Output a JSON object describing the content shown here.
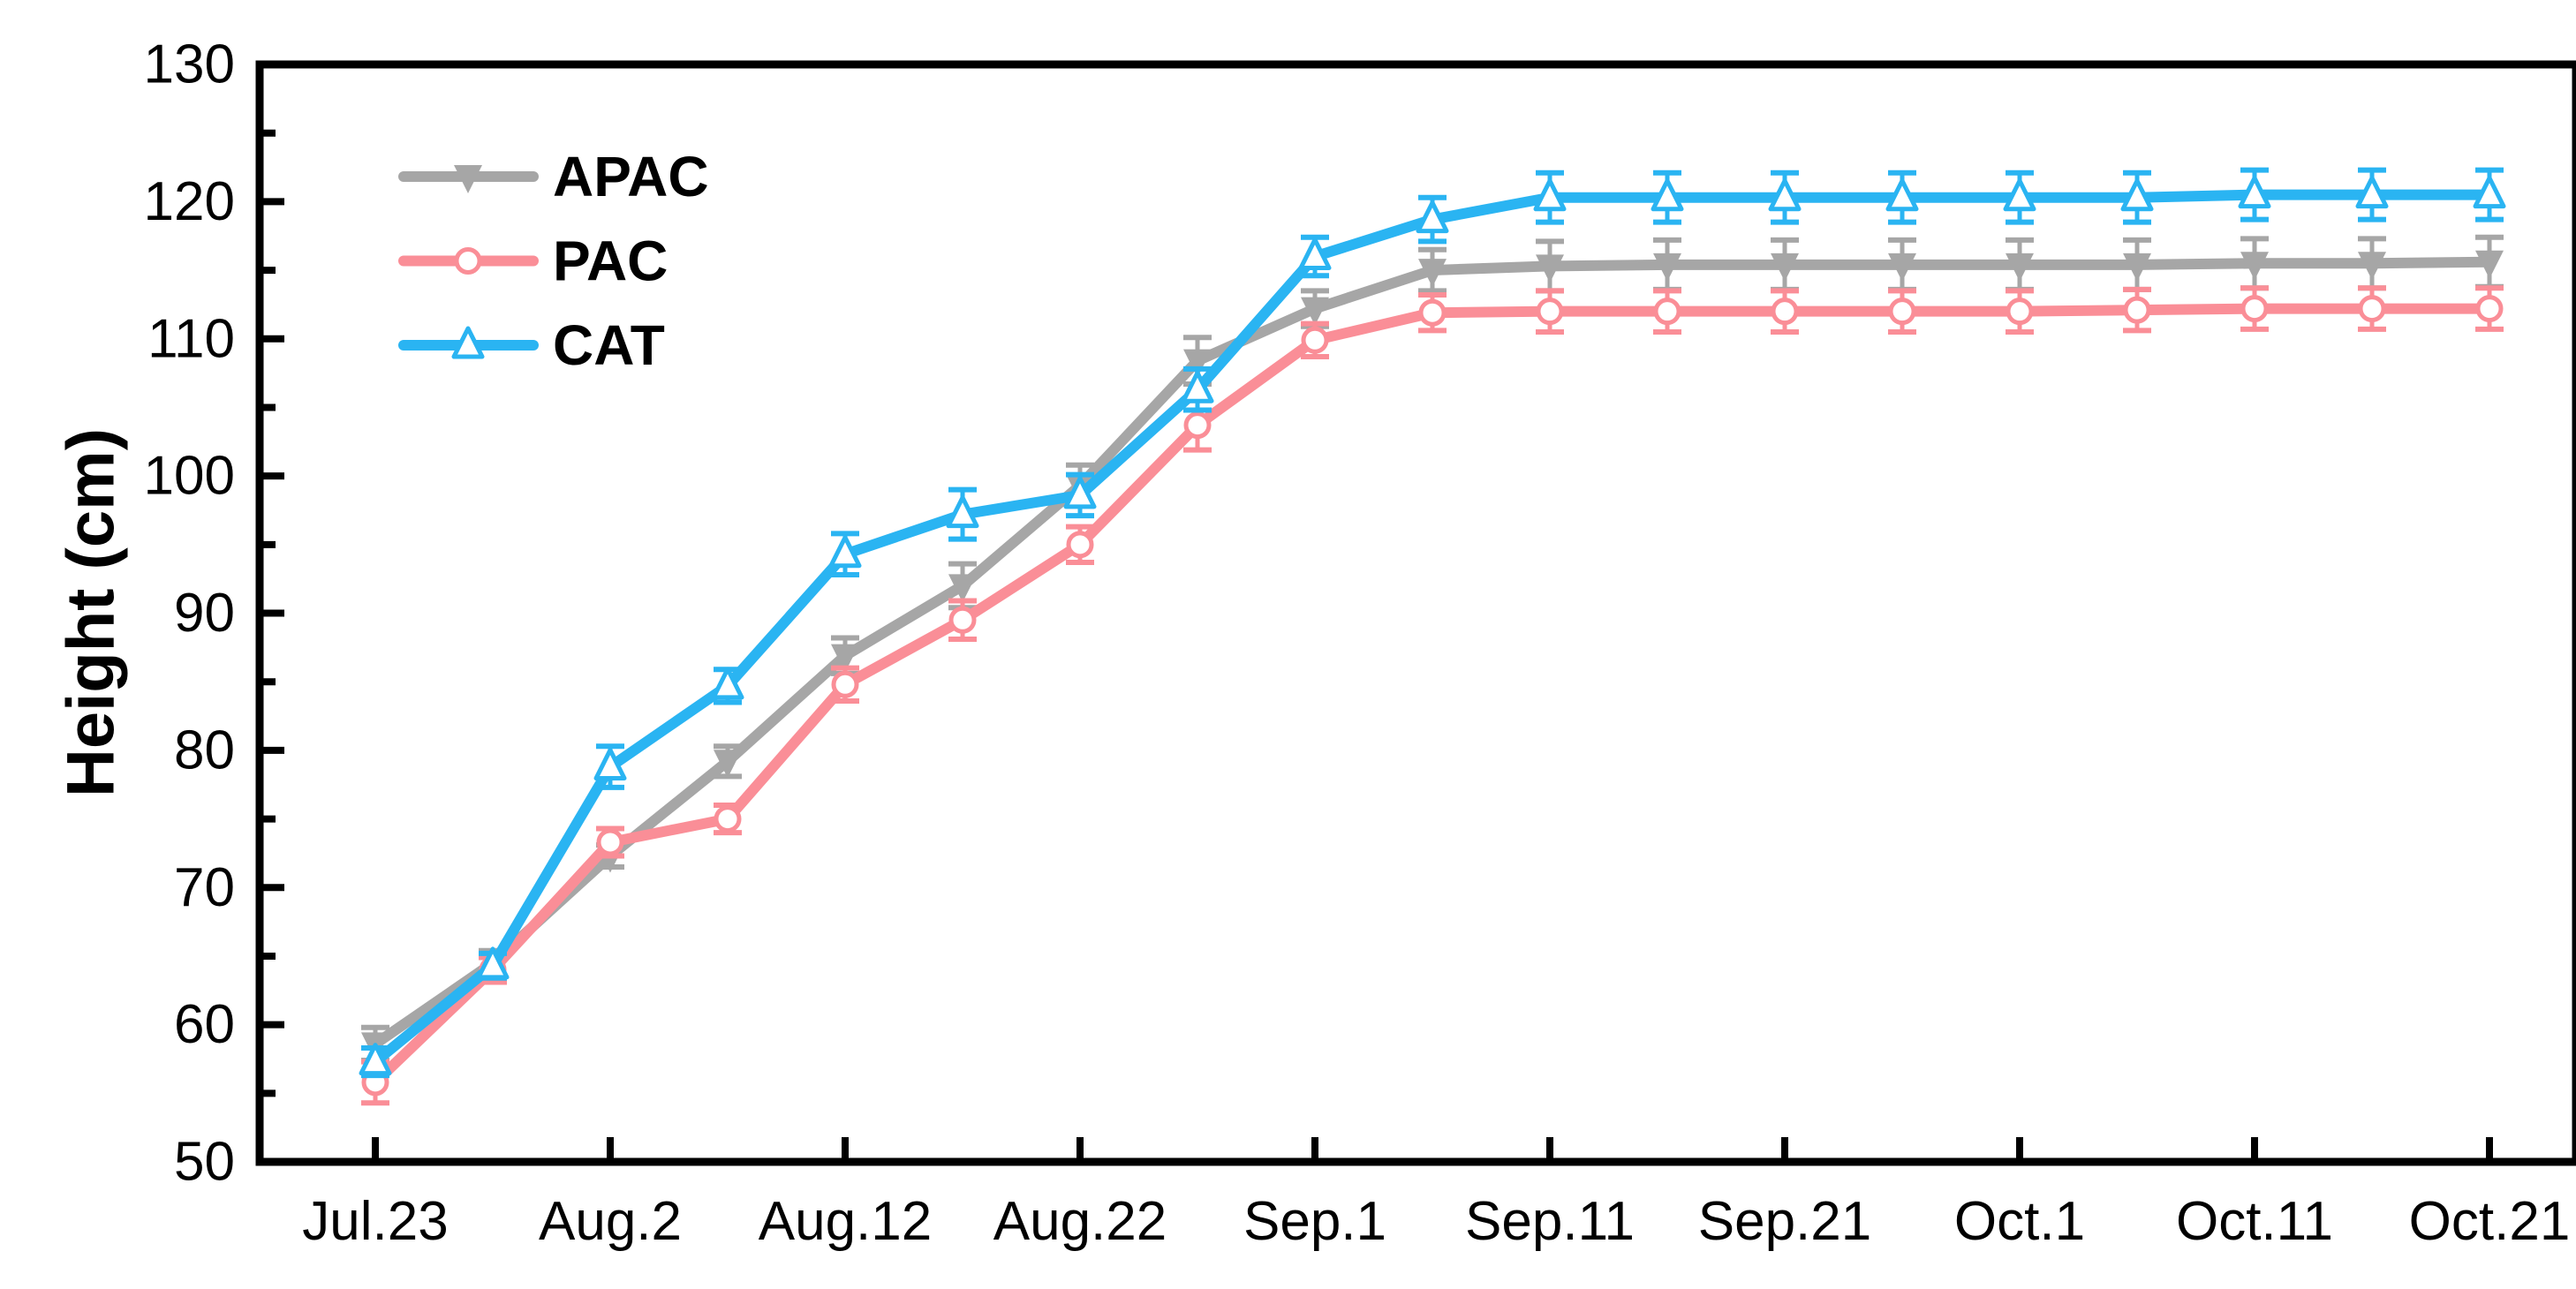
{
  "page": {
    "background": "#ffffff"
  },
  "chart_data": {
    "type": "line",
    "title": "",
    "xlabel": "",
    "ylabel": "Height (cm)",
    "ylim": [
      50,
      130
    ],
    "y_major_tick_step": 10,
    "y_minor_tick_step": 5,
    "y_tick_labels": [
      "50",
      "60",
      "70",
      "80",
      "90",
      "100",
      "110",
      "120",
      "130"
    ],
    "categories": [
      "Jul.23",
      "Jul.28",
      "Aug.2",
      "Aug.7",
      "Aug.12",
      "Aug.17",
      "Aug.22",
      "Aug.27",
      "Sep.1",
      "Sep.6",
      "Sep.11",
      "Sep.16",
      "Sep.21",
      "Sep.26",
      "Oct.1",
      "Oct.6",
      "Oct.11",
      "Oct.16",
      "Oct.21"
    ],
    "x_labeled_ticks": [
      "Jul.23",
      "Aug.2",
      "Aug.12",
      "Aug.22",
      "Sep.1",
      "Sep.11",
      "Sep.21",
      "Oct.1",
      "Oct.11",
      "Oct.21"
    ],
    "x_label_every_nth_point": 2,
    "grid": false,
    "axis_color": "#000000",
    "background_color": "#ffffff",
    "legend": {
      "position": "inside-top-left",
      "entries": [
        "APAC",
        "PAC",
        "CAT"
      ]
    },
    "series": [
      {
        "name": "APAC",
        "color": "#a6a6a6",
        "marker": "triangle-down-filled",
        "values": [
          58.6,
          64.5,
          72.3,
          79.2,
          86.9,
          92.0,
          99.3,
          108.4,
          112.2,
          115.0,
          115.3,
          115.4,
          115.4,
          115.4,
          115.4,
          115.4,
          115.5,
          115.5,
          115.6
        ],
        "errors": [
          1.2,
          0.9,
          0.8,
          1.1,
          1.3,
          1.6,
          1.5,
          1.7,
          1.3,
          1.5,
          1.8,
          1.8,
          1.8,
          1.8,
          1.8,
          1.8,
          1.8,
          1.8,
          1.8
        ]
      },
      {
        "name": "PAC",
        "color": "#fa8e97",
        "marker": "circle-open",
        "values": [
          55.8,
          64.0,
          73.3,
          75.0,
          84.8,
          89.5,
          95.0,
          103.7,
          109.9,
          111.9,
          112.0,
          112.0,
          112.0,
          112.0,
          112.0,
          112.1,
          112.2,
          112.2,
          112.2
        ],
        "errors": [
          1.5,
          0.9,
          1.0,
          1.0,
          1.2,
          1.4,
          1.3,
          1.8,
          1.2,
          1.3,
          1.5,
          1.5,
          1.5,
          1.5,
          1.5,
          1.5,
          1.5,
          1.5,
          1.5
        ]
      },
      {
        "name": "CAT",
        "color": "#2ab4f2",
        "marker": "triangle-up-open",
        "values": [
          57.3,
          64.3,
          78.8,
          84.7,
          94.3,
          97.2,
          98.6,
          106.3,
          116.0,
          118.7,
          120.3,
          120.3,
          120.3,
          120.3,
          120.3,
          120.3,
          120.5,
          120.5,
          120.5
        ],
        "errors": [
          1.0,
          0.9,
          1.5,
          1.2,
          1.5,
          1.8,
          1.5,
          1.5,
          1.4,
          1.6,
          1.8,
          1.8,
          1.8,
          1.8,
          1.8,
          1.8,
          1.8,
          1.8,
          1.8
        ]
      }
    ]
  }
}
